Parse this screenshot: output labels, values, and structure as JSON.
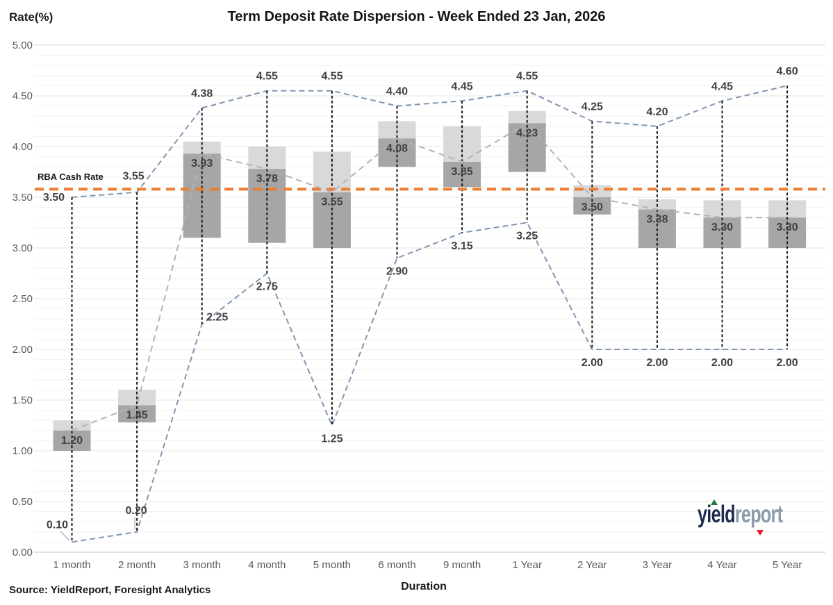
{
  "page": {
    "source_note": "Source: YieldReport, Foresight Analytics",
    "logo": {
      "word1": "yield",
      "word2": "report"
    }
  },
  "chart_data": {
    "type": "box-whisker",
    "title": "Term Deposit Rate Dispersion - Week Ended 23 Jan, 2026",
    "xlabel": "Duration",
    "ylabel": "Rate(%)",
    "ylim": [
      0.0,
      5.0
    ],
    "y_ticks": [
      5.0,
      4.5,
      4.0,
      3.5,
      3.0,
      2.5,
      2.0,
      1.5,
      1.0,
      0.5,
      0.0
    ],
    "grid": "horizontal minor lines every 0.10, major every 0.50",
    "legend": "none",
    "reference_line": {
      "name": "RBA Cash Rate",
      "value": 3.58,
      "color": "#ed7d31",
      "style": "dashed"
    },
    "categories": [
      "1 month",
      "2 month",
      "3 month",
      "4 month",
      "5 month",
      "6 month",
      "9 month",
      "1 Year",
      "2 Year",
      "3 Year",
      "4 Year",
      "5 Year"
    ],
    "series": [
      {
        "name": "High",
        "style": "blue dashed envelope, labeled",
        "values": [
          3.5,
          3.55,
          4.38,
          4.55,
          4.55,
          4.4,
          4.45,
          4.55,
          4.25,
          4.2,
          4.45,
          4.6
        ]
      },
      {
        "name": "Low",
        "style": "blue dashed envelope, labeled",
        "values": [
          0.1,
          0.2,
          2.25,
          2.75,
          1.25,
          2.9,
          3.15,
          3.25,
          2.0,
          2.0,
          2.0,
          2.0
        ]
      },
      {
        "name": "Box Top",
        "style": "light gray box upper edge",
        "values": [
          1.3,
          1.6,
          4.05,
          4.0,
          3.95,
          4.25,
          4.2,
          4.35,
          3.62,
          3.48,
          3.47,
          3.47
        ]
      },
      {
        "name": "Average",
        "style": "gray dashed line at light/dark box split, labeled",
        "values": [
          1.2,
          1.45,
          3.93,
          3.78,
          3.55,
          4.08,
          3.85,
          4.23,
          3.5,
          3.38,
          3.3,
          3.3
        ]
      },
      {
        "name": "Box Bottom",
        "style": "dark gray box lower edge",
        "values": [
          1.0,
          1.28,
          3.1,
          3.05,
          3.0,
          3.8,
          3.6,
          3.75,
          3.33,
          3.0,
          3.0,
          3.0
        ]
      }
    ],
    "colors": {
      "box_light": "#d9d9d9",
      "box_dark": "#a6a6a6",
      "whisker": "#1a1a1a",
      "envelope": "#8096b2",
      "average_line": "#b3b3b3",
      "reference": "#ed7d31",
      "value_label": "#404040",
      "axis_label": "#595959",
      "leader": "#9a9a9a"
    }
  }
}
